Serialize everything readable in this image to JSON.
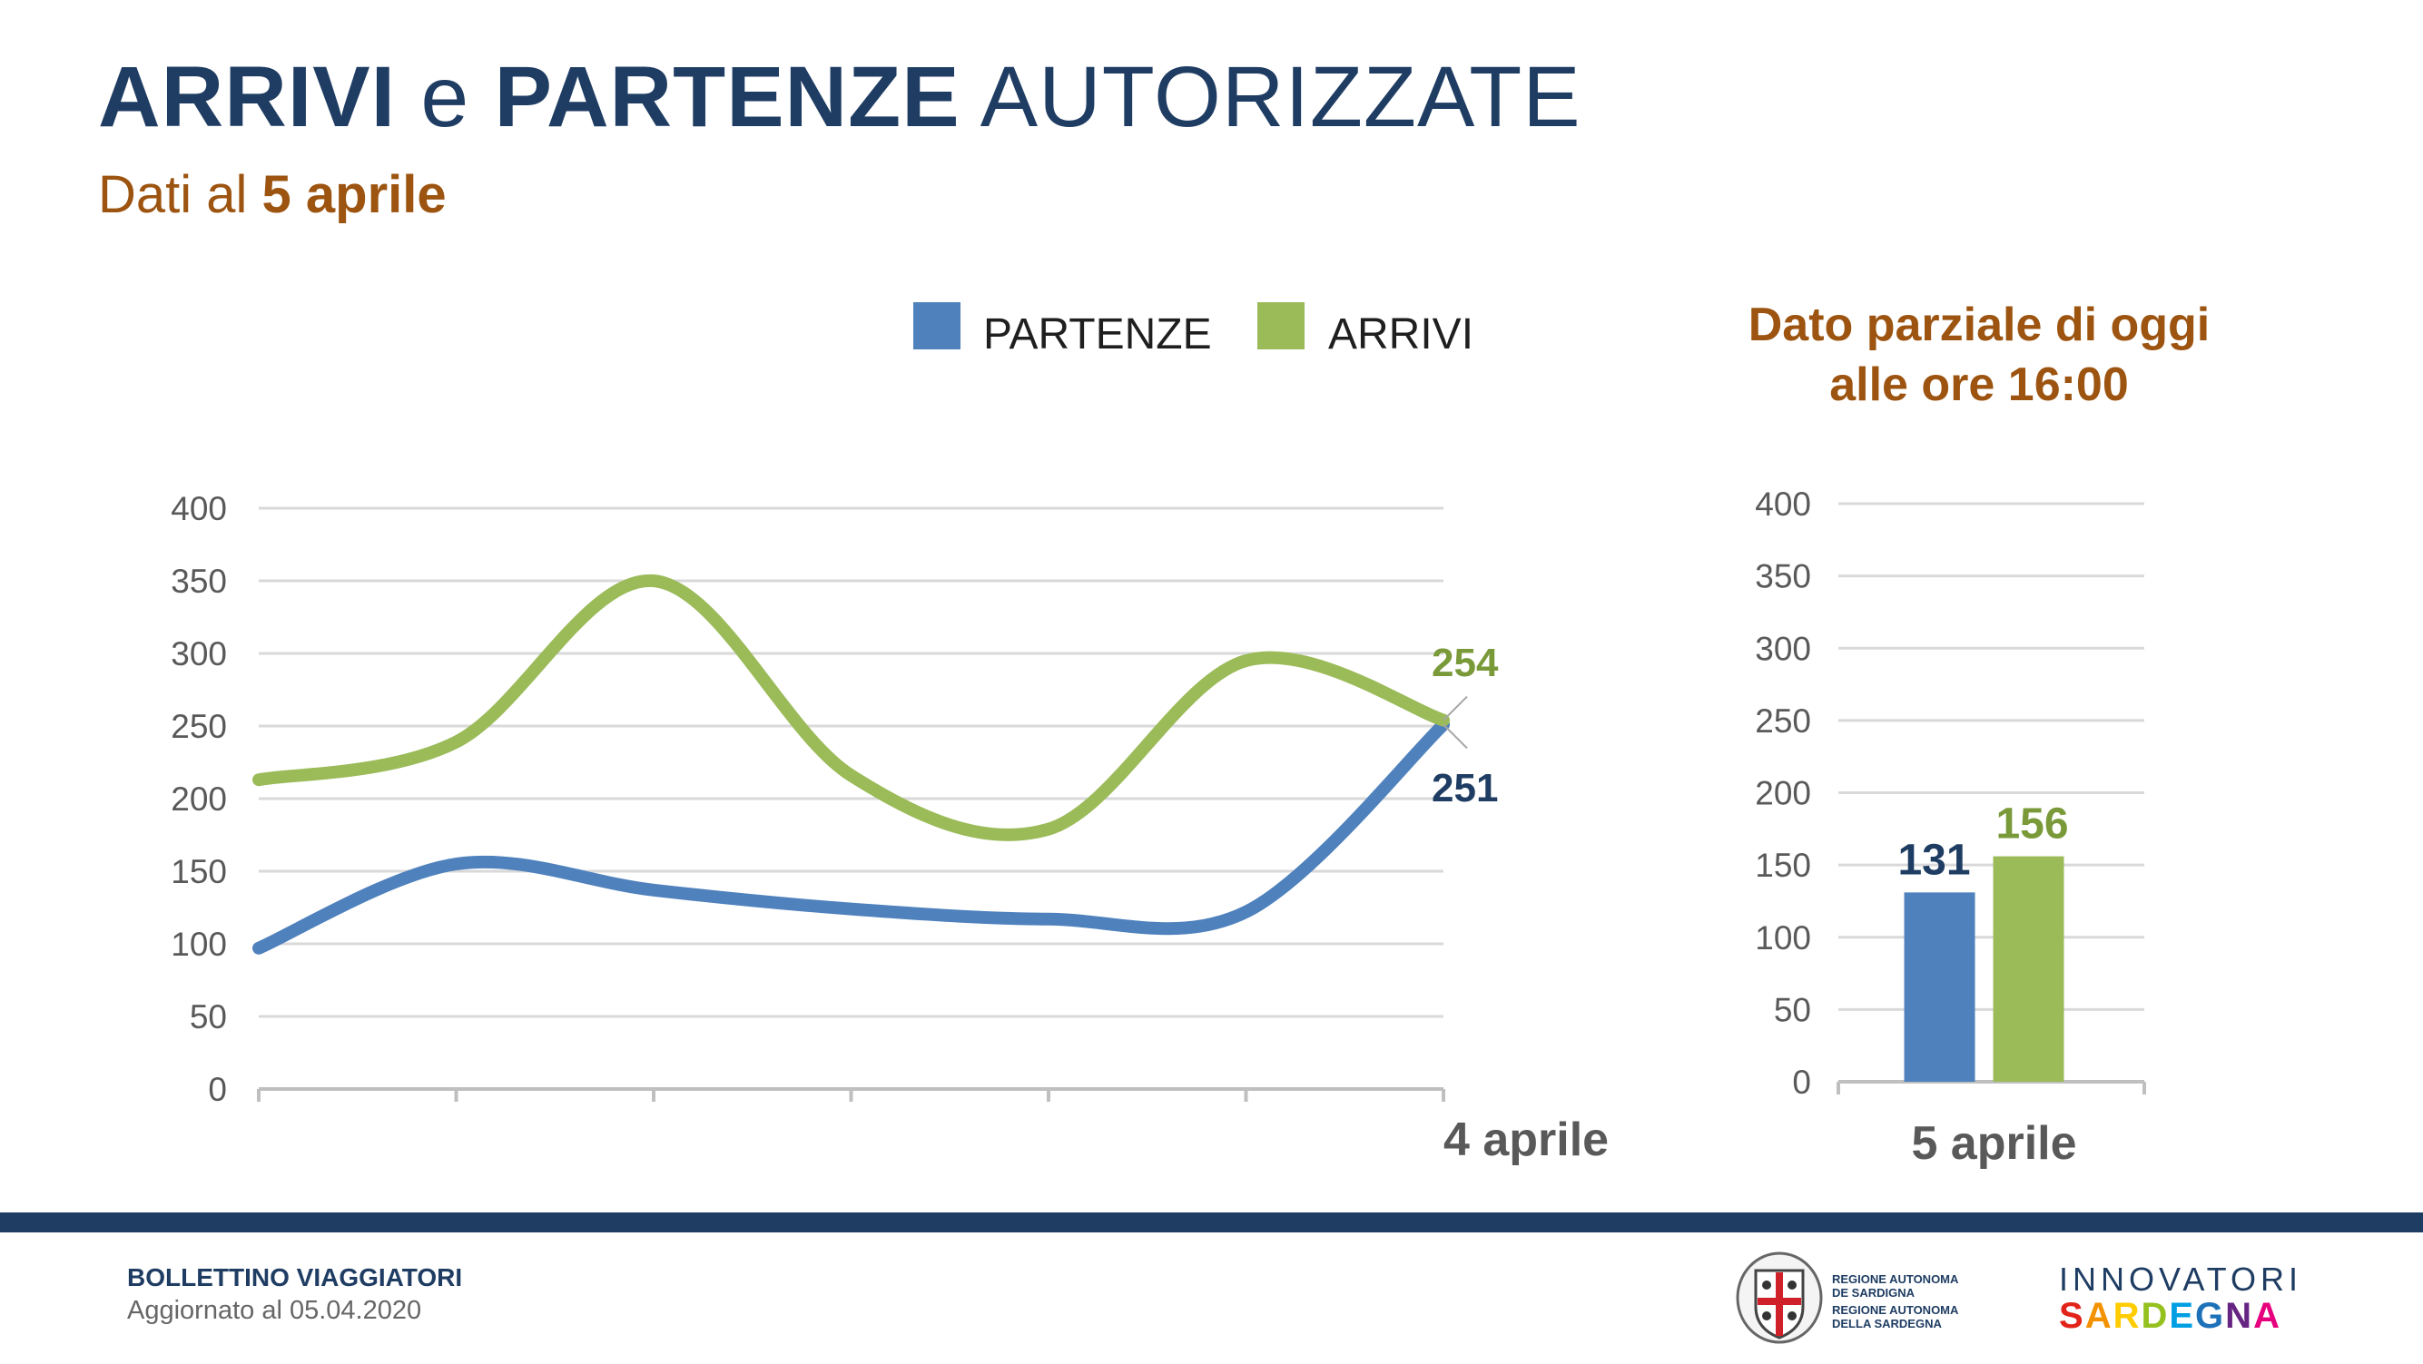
{
  "header": {
    "title_part1": "ARRIVI",
    "title_part2": "e",
    "title_part3": "PARTENZE",
    "title_part4": "AUTORIZZATE",
    "subtitle_prefix": "Dati al",
    "subtitle_date": "5 aprile"
  },
  "partial": {
    "line1": "Dato parziale di oggi",
    "line2": "alle ore 16:00"
  },
  "colors": {
    "partenze": "#4f81bd",
    "arrivi": "#9bbb59",
    "navy": "#1f3d63",
    "brown": "#9c5410"
  },
  "chart_data": [
    {
      "type": "line",
      "legend_position": "top",
      "x": [
        "",
        "",
        "",
        "",
        "",
        "",
        "4 aprile"
      ],
      "ylim": [
        0,
        400
      ],
      "yticks": [
        0,
        50,
        100,
        150,
        200,
        250,
        300,
        350,
        400
      ],
      "grid": true,
      "series": [
        {
          "name": "PARTENZE",
          "values": [
            97,
            155,
            137,
            124,
            117,
            122,
            251
          ],
          "end_label": "251"
        },
        {
          "name": "ARRIVI",
          "values": [
            213,
            239,
            350,
            216,
            179,
            295,
            254
          ],
          "end_label": "254"
        }
      ]
    },
    {
      "type": "bar",
      "categories": [
        "5 aprile"
      ],
      "ylim": [
        0,
        400
      ],
      "yticks": [
        0,
        50,
        100,
        150,
        200,
        250,
        300,
        350,
        400
      ],
      "grid": true,
      "series": [
        {
          "name": "PARTENZE",
          "values": [
            131
          ]
        },
        {
          "name": "ARRIVI",
          "values": [
            156
          ]
        }
      ]
    }
  ],
  "footer": {
    "title": "BOLLETTINO VIAGGIATORI",
    "date": "Aggiornato al 05.04.2020",
    "ras_line1": "REGIONE AUTONOMA",
    "ras_line2": "DE SARDIGNA",
    "ras_line3": "REGIONE AUTONOMA",
    "ras_line4": "DELLA SARDEGNA",
    "innovatori": "INNOVATORI",
    "sardegna_letters": [
      "S",
      "A",
      "R",
      "D",
      "E",
      "G",
      "N",
      "A"
    ],
    "sardegna_colors": [
      "#e2231a",
      "#f39200",
      "#ffcc00",
      "#95c11f",
      "#009fe3",
      "#1d71b8",
      "#662483",
      "#e6007e"
    ]
  }
}
